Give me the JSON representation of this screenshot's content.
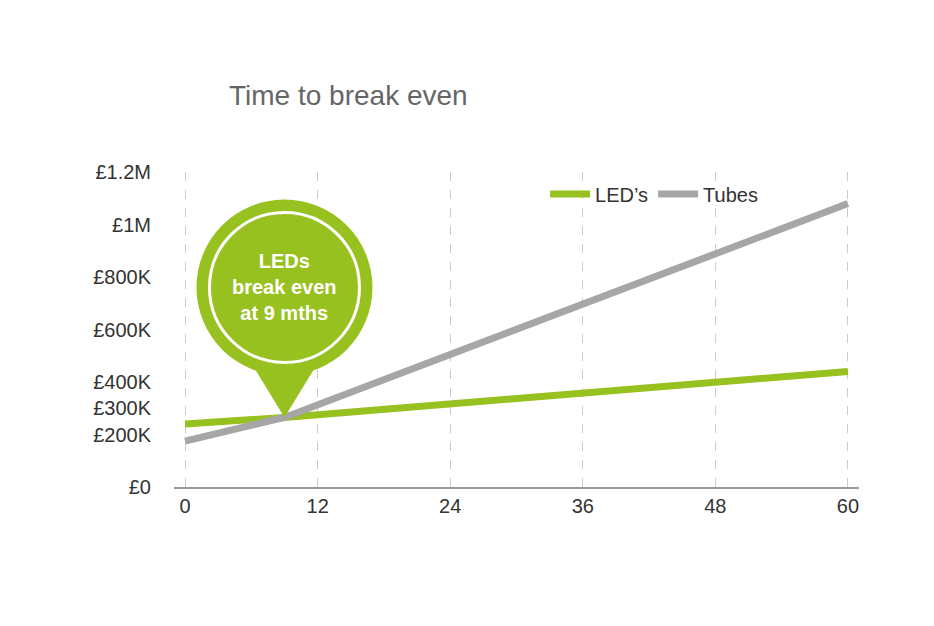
{
  "chart_data": {
    "type": "line",
    "title": "Time to break even",
    "x": [
      0,
      9,
      60
    ],
    "series": [
      {
        "name": "LED’s",
        "color": "#97c11f",
        "values": [
          240000,
          265000,
          440000
        ]
      },
      {
        "name": "Tubes",
        "color": "#a6a6a6",
        "values": [
          175000,
          265000,
          1080000
        ]
      }
    ],
    "xlim": [
      -1,
      61
    ],
    "xticks": [
      0,
      12,
      24,
      36,
      48,
      60
    ],
    "ylim": [
      0,
      1200000
    ],
    "yticks": [
      {
        "value": 0,
        "label": "£0"
      },
      {
        "value": 200000,
        "label": "£200K"
      },
      {
        "value": 300000,
        "label": "£300K"
      },
      {
        "value": 400000,
        "label": "£400K"
      },
      {
        "value": 600000,
        "label": "£600K"
      },
      {
        "value": 800000,
        "label": "£800K"
      },
      {
        "value": 1000000,
        "label": "£1M"
      },
      {
        "value": 1200000,
        "label": "£1.2M"
      }
    ],
    "grid": true,
    "legend": "top right",
    "annotations": [
      {
        "text": [
          "LEDs",
          "break even",
          "at 9 mths"
        ],
        "x": 9,
        "color": "#97c11f"
      }
    ]
  }
}
